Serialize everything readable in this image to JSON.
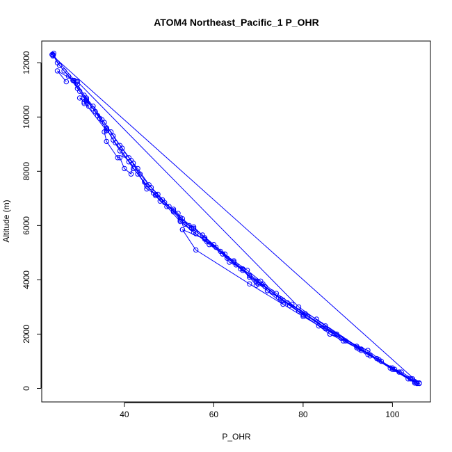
{
  "chart_data": {
    "type": "scatter",
    "title": "ATOM4 Northeast_Pacific_1 P_OHR",
    "xlabel": "P_OHR",
    "ylabel": "Altitude (m)",
    "xlim": [
      21.5,
      108.5
    ],
    "ylim": [
      -500,
      12800
    ],
    "xticks": [
      40,
      60,
      80,
      100
    ],
    "yticks": [
      0,
      2000,
      4000,
      6000,
      8000,
      10000,
      12000
    ],
    "grid": false,
    "legend": "none",
    "marker": "open-circle",
    "colors": {
      "series": "#0000ff",
      "axis": "#000000",
      "background": "#ffffff"
    },
    "series": [
      {
        "points": [
          [
            105.5,
            200
          ],
          [
            104.5,
            350
          ],
          [
            102.0,
            600
          ],
          [
            100.0,
            750
          ],
          [
            97.5,
            1000
          ],
          [
            94.0,
            1350
          ],
          [
            92.5,
            1450
          ],
          [
            89.0,
            1750
          ],
          [
            86.0,
            2000
          ],
          [
            83.5,
            2300
          ],
          [
            80.0,
            2700
          ],
          [
            77.0,
            3050
          ],
          [
            74.5,
            3350
          ],
          [
            72.0,
            3600
          ],
          [
            70.0,
            3850
          ],
          [
            68.0,
            4100
          ],
          [
            66.5,
            4350
          ],
          [
            64.5,
            4650
          ],
          [
            62.5,
            4950
          ],
          [
            60.0,
            5300
          ],
          [
            57.5,
            5650
          ],
          [
            55.5,
            5900
          ],
          [
            53.0,
            6250
          ],
          [
            51.0,
            6550
          ],
          [
            49.0,
            6850
          ],
          [
            47.0,
            7150
          ],
          [
            45.0,
            7450
          ],
          [
            43.0,
            7900
          ],
          [
            41.0,
            8350
          ],
          [
            39.0,
            8750
          ],
          [
            37.5,
            9150
          ],
          [
            36.0,
            9550
          ],
          [
            34.5,
            9950
          ],
          [
            33.0,
            10300
          ],
          [
            31.5,
            10600
          ],
          [
            30.0,
            10950
          ],
          [
            28.5,
            11350
          ],
          [
            26.5,
            11700
          ],
          [
            25.0,
            12000
          ],
          [
            24.0,
            12300
          ]
        ]
      },
      {
        "points": [
          [
            24.0,
            12300
          ],
          [
            25.5,
            11900
          ],
          [
            27.5,
            11500
          ],
          [
            29.5,
            11050
          ],
          [
            31.5,
            10650
          ],
          [
            33.5,
            10200
          ],
          [
            35.5,
            9800
          ],
          [
            37.5,
            9300
          ],
          [
            39.5,
            8850
          ],
          [
            41.5,
            8400
          ],
          [
            43.5,
            7900
          ],
          [
            46.0,
            7400
          ],
          [
            48.5,
            6950
          ],
          [
            51.0,
            6500
          ],
          [
            53.5,
            6050
          ],
          [
            56.0,
            5700
          ],
          [
            59.0,
            5300
          ],
          [
            62.0,
            4950
          ],
          [
            65.0,
            4550
          ],
          [
            68.0,
            4150
          ],
          [
            71.5,
            3750
          ],
          [
            75.0,
            3300
          ],
          [
            79.0,
            2850
          ],
          [
            83.0,
            2450
          ],
          [
            87.5,
            2000
          ],
          [
            92.0,
            1550
          ],
          [
            96.5,
            1100
          ],
          [
            100.5,
            700
          ],
          [
            104.0,
            350
          ],
          [
            106.0,
            200
          ]
        ]
      },
      {
        "points": [
          [
            105.0,
            200
          ],
          [
            101.5,
            600
          ],
          [
            97.0,
            1050
          ],
          [
            93.0,
            1400
          ],
          [
            88.5,
            1850
          ],
          [
            84.0,
            2350
          ],
          [
            80.5,
            2750
          ],
          [
            76.5,
            3150
          ],
          [
            73.0,
            3550
          ],
          [
            69.5,
            3950
          ],
          [
            66.0,
            4400
          ],
          [
            63.0,
            4800
          ],
          [
            60.5,
            5200
          ],
          [
            58.0,
            5550
          ],
          [
            55.0,
            5900
          ],
          [
            52.5,
            6300
          ],
          [
            50.0,
            6700
          ],
          [
            47.5,
            7150
          ],
          [
            45.5,
            7500
          ],
          [
            43.0,
            8100
          ],
          [
            41.0,
            8500
          ],
          [
            39.0,
            8950
          ],
          [
            37.0,
            9450
          ],
          [
            35.0,
            9900
          ],
          [
            33.0,
            10400
          ],
          [
            31.0,
            10800
          ],
          [
            29.5,
            11200
          ],
          [
            28.5,
            11350
          ]
        ]
      },
      {
        "points": [
          [
            28.5,
            11350
          ],
          [
            31.5,
            10700
          ],
          [
            34.0,
            10050
          ],
          [
            36.0,
            9550
          ],
          [
            38.0,
            9050
          ],
          [
            40.0,
            8600
          ],
          [
            42.0,
            8100
          ],
          [
            44.5,
            7600
          ],
          [
            47.0,
            7100
          ],
          [
            49.5,
            6700
          ],
          [
            52.5,
            6150
          ],
          [
            55.5,
            5750
          ],
          [
            58.5,
            5400
          ],
          [
            61.5,
            5050
          ],
          [
            64.5,
            4700
          ],
          [
            67.5,
            4350
          ],
          [
            70.5,
            3950
          ],
          [
            74.0,
            3500
          ],
          [
            77.5,
            3100
          ],
          [
            81.0,
            2650
          ],
          [
            85.0,
            2200
          ],
          [
            89.5,
            1750
          ],
          [
            94.5,
            1250
          ],
          [
            99.5,
            750
          ],
          [
            103.5,
            350
          ],
          [
            105.5,
            200
          ]
        ]
      },
      {
        "points": [
          [
            105.0,
            200
          ],
          [
            92.0,
            1500
          ],
          [
            80.0,
            2650
          ],
          [
            68.0,
            3850
          ],
          [
            56.0,
            5100
          ],
          [
            53.0,
            5850
          ]
        ]
      },
      {
        "points": [
          [
            53.0,
            5850
          ],
          [
            58.0,
            5500
          ],
          [
            66.5,
            4400
          ],
          [
            75.5,
            3250
          ],
          [
            83.0,
            2550
          ],
          [
            93.0,
            1450
          ],
          [
            105.0,
            250
          ]
        ]
      },
      {
        "points": [
          [
            105.5,
            200
          ],
          [
            95.0,
            1200
          ],
          [
            85.0,
            2300
          ],
          [
            79.0,
            3000
          ],
          [
            29.5,
            11300
          ]
        ]
      },
      {
        "points": [
          [
            31.0,
            10500
          ],
          [
            32.0,
            10400
          ],
          [
            31.5,
            10600
          ],
          [
            30.0,
            10700
          ],
          [
            31.0,
            10550
          ],
          [
            36.0,
            9500
          ],
          [
            36.0,
            9600
          ],
          [
            35.5,
            9450
          ],
          [
            36.0,
            9100
          ],
          [
            38.5,
            8500
          ],
          [
            39.0,
            8500
          ],
          [
            40.0,
            8100
          ],
          [
            41.5,
            7900
          ],
          [
            42.0,
            8300
          ],
          [
            45.0,
            7350
          ],
          [
            46.5,
            7200
          ],
          [
            48.0,
            6900
          ],
          [
            51.0,
            6600
          ],
          [
            52.0,
            6450
          ],
          [
            52.5,
            6200
          ],
          [
            54.5,
            6000
          ],
          [
            55.5,
            5950
          ],
          [
            62.0,
            4950
          ],
          [
            63.5,
            4650
          ],
          [
            66.5,
            4400
          ],
          [
            69.5,
            3800
          ],
          [
            71.0,
            3850
          ],
          [
            72.0,
            3600
          ],
          [
            75.5,
            3100
          ],
          [
            75.5,
            3250
          ],
          [
            86.0,
            2000
          ],
          [
            88.5,
            1850
          ],
          [
            94.5,
            1400
          ],
          [
            100.0,
            700
          ],
          [
            105.5,
            180
          ],
          [
            106.0,
            180
          ],
          [
            24.0,
            12250
          ],
          [
            24.2,
            12350
          ],
          [
            23.8,
            12300
          ],
          [
            24.1,
            12280
          ],
          [
            28.8,
            11350
          ],
          [
            29.2,
            11300
          ],
          [
            25.0,
            11700
          ],
          [
            27.0,
            11300
          ]
        ]
      }
    ]
  }
}
